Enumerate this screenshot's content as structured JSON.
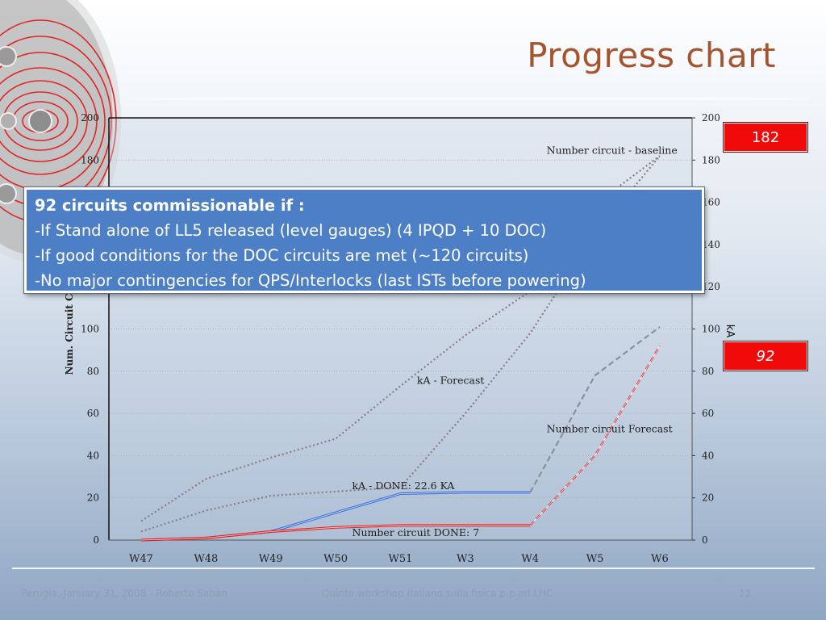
{
  "slide": {
    "title": "Progress chart",
    "footer_left": "Perugia, January 31, 2008 - Roberto Saban",
    "footer_center": "Quinto workshop italiano sulla fisica p-p ad LHC",
    "page_number": "12"
  },
  "badges": {
    "top": "182",
    "bottom": "92"
  },
  "callout": {
    "heading": "92 circuits commissionable if :",
    "lines": [
      "-If Stand alone of LL5 released (level gauges)  (4 IPQD + 10 DOC)",
      "-If good conditions for the DOC circuits are met (~120 circuits)",
      "-No major contingencies for QPS/Interlocks (last ISTs before powering)"
    ]
  },
  "chart_data": {
    "type": "line",
    "categories": [
      "W47",
      "W48",
      "W49",
      "W50",
      "W51",
      "W3",
      "W4",
      "W5",
      "W6"
    ],
    "ylabel": "Num. Circuit Co",
    "y2label": "kA",
    "ylim": [
      0,
      200
    ],
    "y2lim": [
      0,
      200
    ],
    "yticks": [
      "0",
      "20",
      "40",
      "60",
      "80",
      "100",
      "120",
      "140",
      "160",
      "180",
      "200"
    ],
    "grid": true,
    "series": [
      {
        "name": "Number circuit - baseline",
        "axis": "left",
        "color": "#8a7d85",
        "style": "dotted",
        "values": [
          9,
          29,
          39,
          48,
          73,
          97,
          118,
          159,
          182
        ]
      },
      {
        "name": "Number circuit  Forecast",
        "axis": "left",
        "color": "#8a7d85",
        "style": "dotted",
        "values": [
          4,
          14,
          21,
          23,
          25,
          60,
          98,
          145,
          182
        ]
      },
      {
        "name": "kA -  Forecast",
        "axis": "right",
        "color": "#8a9098",
        "style": "dashed",
        "values": [
          null,
          null,
          null,
          null,
          null,
          null,
          22.6,
          78,
          101
        ]
      },
      {
        "name": "kA - DONE: 22.6 KA",
        "axis": "right",
        "color": "#3a6fd8",
        "style": "solid",
        "values": [
          0,
          1,
          4,
          13,
          22,
          22.6,
          22.6,
          null,
          null
        ]
      },
      {
        "name": "Number circuit DONE: 7",
        "axis": "left",
        "color": "#e02020",
        "style": "solid",
        "values": [
          0,
          1,
          4,
          6,
          7,
          7,
          7,
          null,
          null
        ]
      },
      {
        "name": "",
        "axis": "left",
        "color": "#e02020",
        "style": "dashed",
        "values": [
          null,
          null,
          null,
          null,
          null,
          null,
          7,
          40,
          92
        ]
      }
    ],
    "annotations": [
      {
        "text": "Number circuit - baseline",
        "x_category": "W5",
        "y": 183
      },
      {
        "text": "kA -  Forecast",
        "x_category": "W3",
        "y": 74
      },
      {
        "text": "Number circuit  Forecast",
        "x_category": "W5",
        "y": 51
      },
      {
        "text": "kA - DONE: 22.6 KA",
        "x_category": "W51",
        "y": 24
      },
      {
        "text": "Number circuit DONE: 7",
        "x_category": "W51",
        "y": 2
      }
    ]
  },
  "colors": {
    "title": "#a6542e",
    "callout_bg": "#4c7fc6",
    "badge_bg": "#f10a0a"
  }
}
